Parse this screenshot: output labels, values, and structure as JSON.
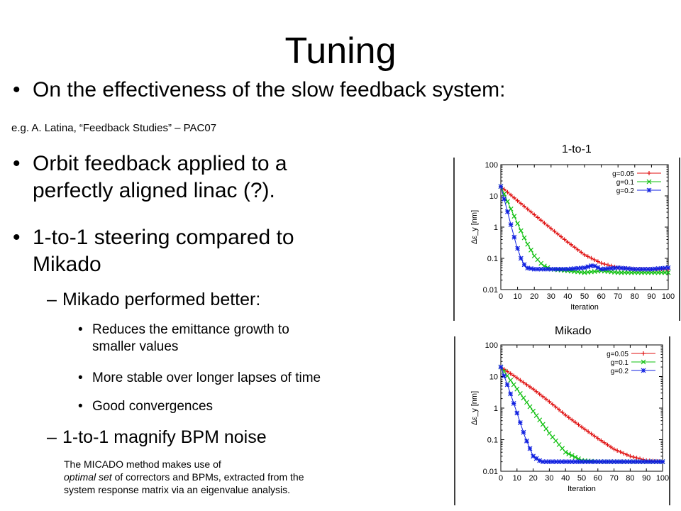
{
  "slide": {
    "title": "Tuning",
    "bullets": {
      "top": "On the effectiveness of the slow feedback system:",
      "ref": "e.g. A. Latina, “Feedback Studies” – PAC07",
      "b1": "Orbit feedback applied to a perfectly aligned linac (?).",
      "b1_line1": "Orbit feedback applied to a",
      "b1_line2": "perfectly aligned linac (?).",
      "b2_line1": "1-to-1 steering compared to",
      "b2_line2": "Mikado",
      "sub1": "Mikado performed better:",
      "sub1_items": [
        {
          "line1": "Reduces the emittance growth to",
          "line2": "smaller values"
        },
        {
          "line1": "More stable over longer lapses of time"
        },
        {
          "line1": "Good convergences"
        }
      ],
      "sub2": "1-to-1 magnify BPM noise"
    },
    "note": {
      "line1": "The MICADO method makes use of",
      "line2_italic": "optimal set",
      "line2_rest": " of correctors and BPMs, extracted from the",
      "line3": "system response matrix via an eigenvalue analysis."
    },
    "bullet_char": "•",
    "dash_char": "–"
  },
  "chart_data": [
    {
      "type": "line",
      "title": "1-to-1",
      "xlabel": "Iteration",
      "ylabel": "Δε_y [nm]",
      "xlim": [
        0,
        100
      ],
      "ylim": [
        0.01,
        100
      ],
      "yscale": "log",
      "xticks": [
        0,
        10,
        20,
        30,
        40,
        50,
        60,
        70,
        80,
        90,
        100
      ],
      "yticks": [
        0.01,
        0.1,
        1,
        10,
        100
      ],
      "ytick_labels": [
        "0.01",
        "0.1",
        "1",
        "10",
        "100"
      ],
      "legend_position": "top-right",
      "series": [
        {
          "name": "g=0.05",
          "color": "#e01010",
          "marker": "+",
          "x": [
            0,
            10,
            20,
            30,
            40,
            50,
            60,
            70,
            80,
            90,
            100
          ],
          "y": [
            20,
            7,
            2.5,
            0.9,
            0.33,
            0.13,
            0.07,
            0.05,
            0.045,
            0.045,
            0.045
          ]
        },
        {
          "name": "g=0.1",
          "color": "#10c010",
          "marker": "x",
          "x": [
            0,
            5,
            10,
            15,
            20,
            25,
            30,
            40,
            50,
            60,
            70,
            80,
            90,
            100
          ],
          "y": [
            20,
            5,
            1.3,
            0.35,
            0.12,
            0.06,
            0.045,
            0.04,
            0.035,
            0.04,
            0.035,
            0.035,
            0.035,
            0.035
          ]
        },
        {
          "name": "g=0.2",
          "color": "#1020e0",
          "marker": "*",
          "x": [
            0,
            3,
            6,
            9,
            12,
            15,
            20,
            30,
            40,
            50,
            55,
            60,
            70,
            80,
            90,
            100
          ],
          "y": [
            20,
            5,
            1.2,
            0.3,
            0.1,
            0.05,
            0.045,
            0.045,
            0.045,
            0.05,
            0.06,
            0.045,
            0.05,
            0.045,
            0.045,
            0.05
          ]
        }
      ]
    },
    {
      "type": "line",
      "title": "Mikado",
      "xlabel": "Iteration",
      "ylabel": "Δε_y [nm]",
      "xlim": [
        0,
        100
      ],
      "ylim": [
        0.01,
        100
      ],
      "yscale": "log",
      "xticks": [
        0,
        10,
        20,
        30,
        40,
        50,
        60,
        70,
        80,
        90,
        100
      ],
      "yticks": [
        0.01,
        0.1,
        1,
        10,
        100
      ],
      "ytick_labels": [
        "0.01",
        "0.1",
        "1",
        "10",
        "100"
      ],
      "legend_position": "top-right",
      "series": [
        {
          "name": "g=0.05",
          "color": "#e01010",
          "marker": "+",
          "x": [
            0,
            10,
            20,
            30,
            40,
            50,
            60,
            70,
            80,
            90,
            100
          ],
          "y": [
            20,
            9,
            4,
            1.6,
            0.6,
            0.25,
            0.11,
            0.05,
            0.03,
            0.022,
            0.02
          ]
        },
        {
          "name": "g=0.1",
          "color": "#10c010",
          "marker": "x",
          "x": [
            0,
            10,
            20,
            30,
            40,
            50,
            60,
            70,
            80,
            90,
            100
          ],
          "y": [
            20,
            4,
            0.8,
            0.16,
            0.04,
            0.022,
            0.02,
            0.02,
            0.02,
            0.02,
            0.02
          ]
        },
        {
          "name": "g=0.2",
          "color": "#1020e0",
          "marker": "*",
          "x": [
            0,
            5,
            10,
            15,
            20,
            25,
            30,
            40,
            60,
            80,
            100
          ],
          "y": [
            20,
            4,
            0.7,
            0.12,
            0.03,
            0.02,
            0.02,
            0.02,
            0.02,
            0.02,
            0.02
          ]
        }
      ]
    }
  ]
}
